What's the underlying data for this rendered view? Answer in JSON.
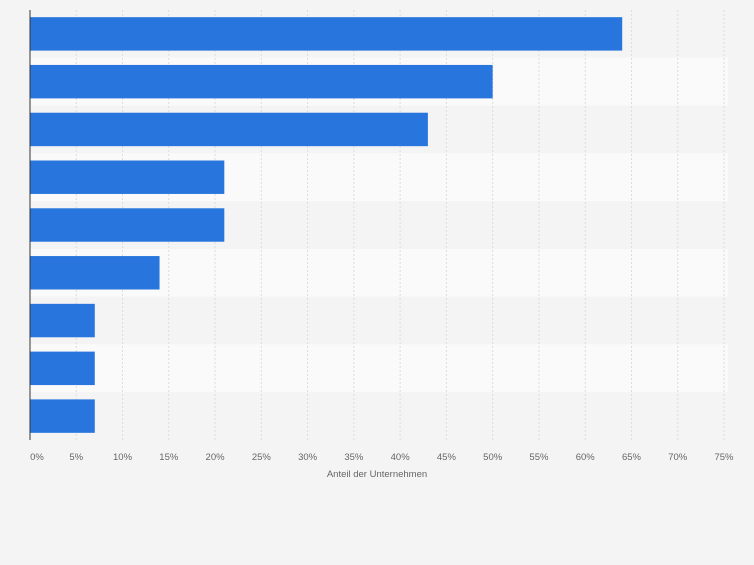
{
  "chart_data": {
    "type": "bar",
    "orientation": "horizontal",
    "title": "",
    "xlabel": "Anteil der Unternehmen",
    "ylabel": "",
    "categories": [
      "",
      "",
      "",
      "",
      "",
      "",
      "",
      "",
      ""
    ],
    "values": [
      64,
      50,
      43,
      21,
      21,
      14,
      7,
      7,
      7
    ],
    "xlim": [
      0,
      75
    ],
    "xticks": [
      0,
      5,
      10,
      15,
      20,
      25,
      30,
      35,
      40,
      45,
      50,
      55,
      60,
      65,
      70,
      75
    ],
    "xtick_labels": [
      "0%",
      "5%",
      "10%",
      "15%",
      "20%",
      "25%",
      "30%",
      "35%",
      "40%",
      "45%",
      "50%",
      "55%",
      "60%",
      "65%",
      "70%",
      "75%"
    ],
    "grid": true,
    "legend": "none",
    "colors": {
      "bar": "#2876dd",
      "background": "#f4f4f4",
      "band_light": "#fafafa",
      "band_dark": "#f4f4f4",
      "grid": "#dcdcdc",
      "axis": "#333333",
      "tick_text": "#666666"
    }
  }
}
